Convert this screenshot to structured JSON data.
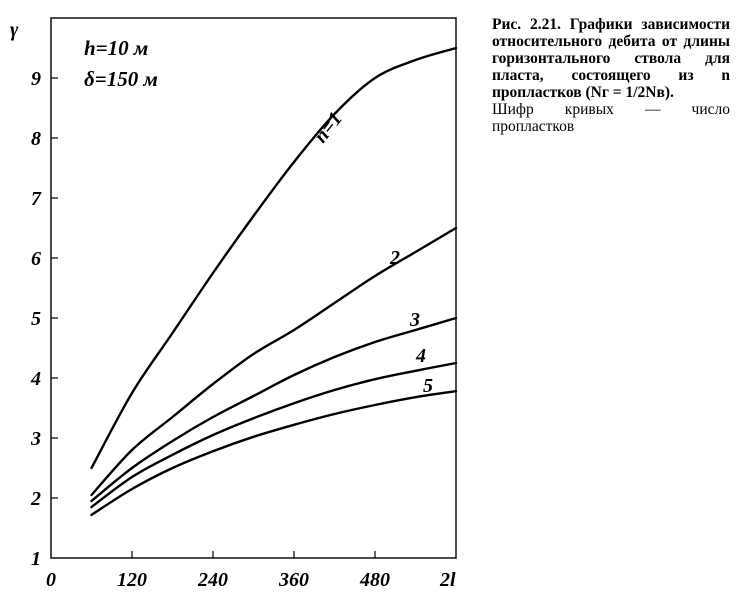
{
  "chart_data": {
    "type": "line",
    "ylabel": "γ",
    "xlabel": "2l",
    "x_ticks": [
      "0",
      "120",
      "240",
      "360",
      "480"
    ],
    "y_ticks": [
      "1",
      "2",
      "3",
      "4",
      "5",
      "6",
      "7",
      "8",
      "9"
    ],
    "xlim": [
      0,
      600
    ],
    "ylim": [
      1,
      10
    ],
    "params": [
      "h=10 м",
      "δ=150 м"
    ],
    "x": [
      60,
      120,
      180,
      240,
      300,
      360,
      420,
      480,
      540,
      600
    ],
    "series": [
      {
        "name": "n=1",
        "values": [
          2.5,
          3.75,
          4.75,
          5.75,
          6.7,
          7.6,
          8.4,
          9.0,
          9.3,
          9.5
        ]
      },
      {
        "name": "2",
        "values": [
          2.05,
          2.8,
          3.35,
          3.9,
          4.4,
          4.8,
          5.25,
          5.7,
          6.1,
          6.5
        ]
      },
      {
        "name": "3",
        "values": [
          1.95,
          2.5,
          2.95,
          3.35,
          3.7,
          4.05,
          4.35,
          4.6,
          4.8,
          5.0
        ]
      },
      {
        "name": "4",
        "values": [
          1.85,
          2.35,
          2.72,
          3.05,
          3.33,
          3.58,
          3.8,
          3.98,
          4.12,
          4.25
        ]
      },
      {
        "name": "5",
        "values": [
          1.72,
          2.15,
          2.5,
          2.78,
          3.02,
          3.22,
          3.4,
          3.55,
          3.68,
          3.78
        ]
      }
    ]
  },
  "caption": {
    "bold": "Рис. 2.21. Графики зависимости относительного дебита от длины горизонтального ствола для пласта, состоящего из n пропластков (Nг = 1/2Nв).",
    "normal": "Шифр кривых — число пропластков"
  }
}
